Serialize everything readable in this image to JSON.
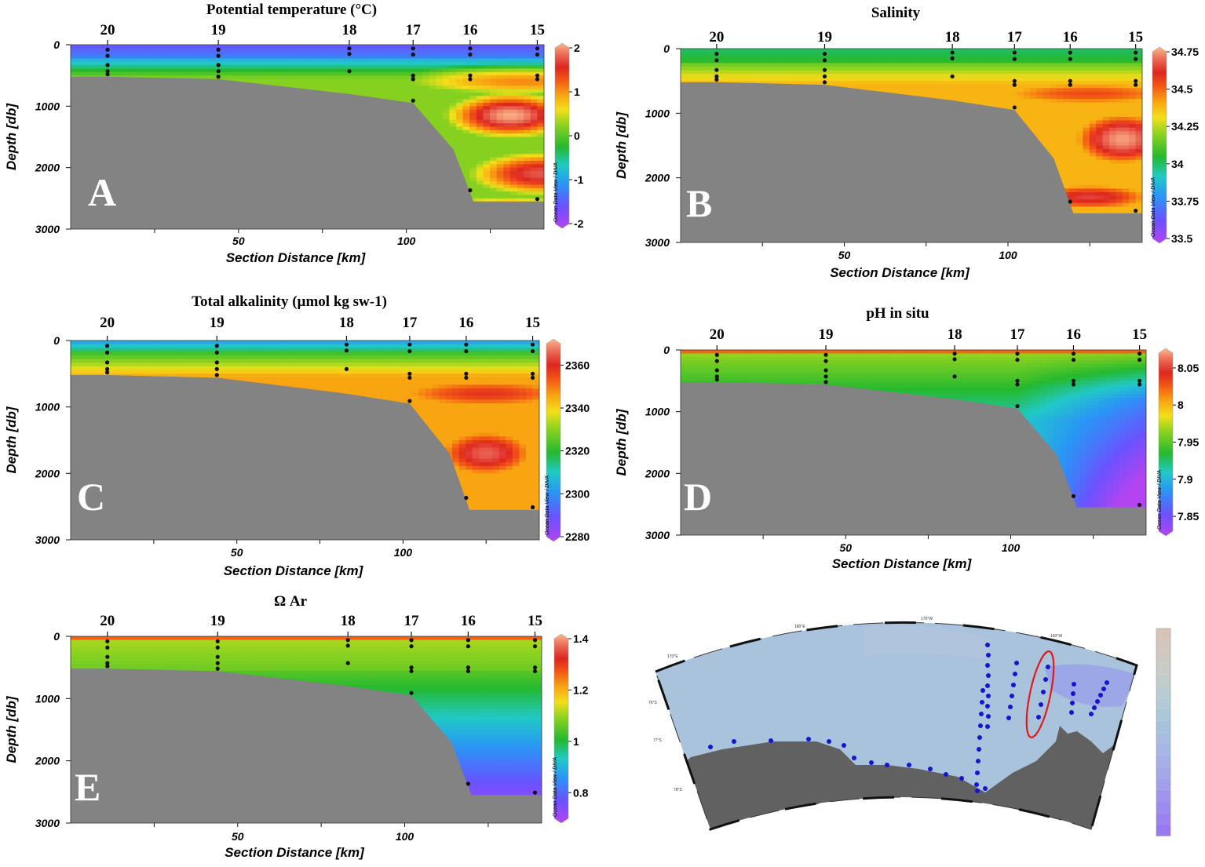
{
  "chart_data": [
    {
      "type": "heatmap",
      "panel": "A",
      "title": "Potential temperature (°C)",
      "xlabel": "Section Distance [km]",
      "ylabel": "Depth [db]",
      "x_ticks": [
        50,
        100
      ],
      "y_ticks": [
        0,
        1000,
        2000,
        3000
      ],
      "ylim": [
        3000,
        0
      ],
      "stations": [
        {
          "label": "20",
          "x": 11
        },
        {
          "label": "19",
          "x": 44
        },
        {
          "label": "18",
          "x": 83
        },
        {
          "label": "17",
          "x": 102
        },
        {
          "label": "16",
          "x": 119
        },
        {
          "label": "15",
          "x": 139
        }
      ],
      "bottom_profile": [
        [
          0,
          520
        ],
        [
          11,
          520
        ],
        [
          44,
          560
        ],
        [
          83,
          800
        ],
        [
          102,
          950
        ],
        [
          114,
          1700
        ],
        [
          120,
          2550
        ],
        [
          141,
          2550
        ]
      ],
      "colorbar": {
        "ticks": [
          "2",
          "1",
          "0",
          "-1",
          "-2"
        ],
        "min": -2,
        "max": 2
      },
      "watermark": "Ocean Data View / DIVA"
    },
    {
      "type": "heatmap",
      "panel": "B",
      "title": "Salinity",
      "xlabel": "Section Distance [km]",
      "ylabel": "Depth [db]",
      "x_ticks": [
        50,
        100
      ],
      "y_ticks": [
        0,
        1000,
        2000,
        3000
      ],
      "ylim": [
        3000,
        0
      ],
      "stations": [
        {
          "label": "20",
          "x": 11
        },
        {
          "label": "19",
          "x": 44
        },
        {
          "label": "18",
          "x": 83
        },
        {
          "label": "17",
          "x": 102
        },
        {
          "label": "16",
          "x": 119
        },
        {
          "label": "15",
          "x": 139
        }
      ],
      "bottom_profile": [
        [
          0,
          520
        ],
        [
          11,
          520
        ],
        [
          44,
          560
        ],
        [
          83,
          800
        ],
        [
          102,
          950
        ],
        [
          114,
          1700
        ],
        [
          120,
          2550
        ],
        [
          141,
          2550
        ]
      ],
      "colorbar": {
        "ticks": [
          "34.75",
          "34.5",
          "34.25",
          "34",
          "33.75",
          "33.5"
        ],
        "min": 33.5,
        "max": 34.75
      },
      "watermark": "Ocean Data View / DIVA"
    },
    {
      "type": "heatmap",
      "panel": "C",
      "title": "Total alkalinity (µmol kg sw-1)",
      "xlabel": "Section Distance [km]",
      "ylabel": "Depth [db]",
      "x_ticks": [
        50,
        100
      ],
      "y_ticks": [
        0,
        1000,
        2000,
        3000
      ],
      "ylim": [
        3000,
        0
      ],
      "stations": [
        {
          "label": "20",
          "x": 11
        },
        {
          "label": "19",
          "x": 44
        },
        {
          "label": "18",
          "x": 83
        },
        {
          "label": "17",
          "x": 102
        },
        {
          "label": "16",
          "x": 119
        },
        {
          "label": "15",
          "x": 139
        }
      ],
      "bottom_profile": [
        [
          0,
          520
        ],
        [
          11,
          520
        ],
        [
          44,
          560
        ],
        [
          83,
          800
        ],
        [
          102,
          950
        ],
        [
          114,
          1700
        ],
        [
          120,
          2550
        ],
        [
          141,
          2550
        ]
      ],
      "colorbar": {
        "ticks": [
          "2360",
          "2340",
          "2320",
          "2300",
          "2280"
        ],
        "min": 2280,
        "max": 2370
      },
      "watermark": "Ocean Data View / DIVA"
    },
    {
      "type": "heatmap",
      "panel": "D",
      "title": "pH in situ",
      "xlabel": "Section Distance [km]",
      "ylabel": "Depth [db]",
      "x_ticks": [
        50,
        100
      ],
      "y_ticks": [
        0,
        1000,
        2000,
        3000
      ],
      "ylim": [
        3000,
        0
      ],
      "stations": [
        {
          "label": "20",
          "x": 11
        },
        {
          "label": "19",
          "x": 44
        },
        {
          "label": "18",
          "x": 83
        },
        {
          "label": "17",
          "x": 102
        },
        {
          "label": "16",
          "x": 119
        },
        {
          "label": "15",
          "x": 139
        }
      ],
      "bottom_profile": [
        [
          0,
          520
        ],
        [
          11,
          520
        ],
        [
          44,
          560
        ],
        [
          83,
          800
        ],
        [
          102,
          950
        ],
        [
          114,
          1700
        ],
        [
          120,
          2550
        ],
        [
          141,
          2550
        ]
      ],
      "colorbar": {
        "ticks": [
          "8.05",
          "8",
          "7.95",
          "7.9",
          "7.85"
        ],
        "min": 7.83,
        "max": 8.07
      },
      "watermark": "Ocean Data View / DIVA"
    },
    {
      "type": "heatmap",
      "panel": "E",
      "title": "Ω Ar",
      "xlabel": "Section Distance [km]",
      "ylabel": "Depth [db]",
      "x_ticks": [
        50,
        100
      ],
      "y_ticks": [
        0,
        1000,
        2000,
        3000
      ],
      "ylim": [
        3000,
        0
      ],
      "stations": [
        {
          "label": "20",
          "x": 11
        },
        {
          "label": "19",
          "x": 44
        },
        {
          "label": "18",
          "x": 83
        },
        {
          "label": "17",
          "x": 102
        },
        {
          "label": "16",
          "x": 119
        },
        {
          "label": "15",
          "x": 139
        }
      ],
      "bottom_profile": [
        [
          0,
          520
        ],
        [
          11,
          520
        ],
        [
          44,
          560
        ],
        [
          83,
          800
        ],
        [
          102,
          950
        ],
        [
          114,
          1700
        ],
        [
          120,
          2550
        ],
        [
          141,
          2550
        ]
      ],
      "colorbar": {
        "ticks": [
          "1.4",
          "1.2",
          "1",
          "0.8"
        ],
        "min": 0.7,
        "max": 1.4
      },
      "watermark": "Ocean Data View / DIVA"
    }
  ],
  "map": {
    "lat_labels": [
      "76°S",
      "77°S",
      "78°S"
    ],
    "lon_labels": [
      "170°E",
      "180°E",
      "170°W",
      "160°W"
    ],
    "colors": {
      "ocean": "#a9c3dc",
      "land": "#616161",
      "stations": "#1414d2",
      "highlight": "#e11a1a"
    }
  },
  "colors": {
    "seafloor": "#838383"
  }
}
